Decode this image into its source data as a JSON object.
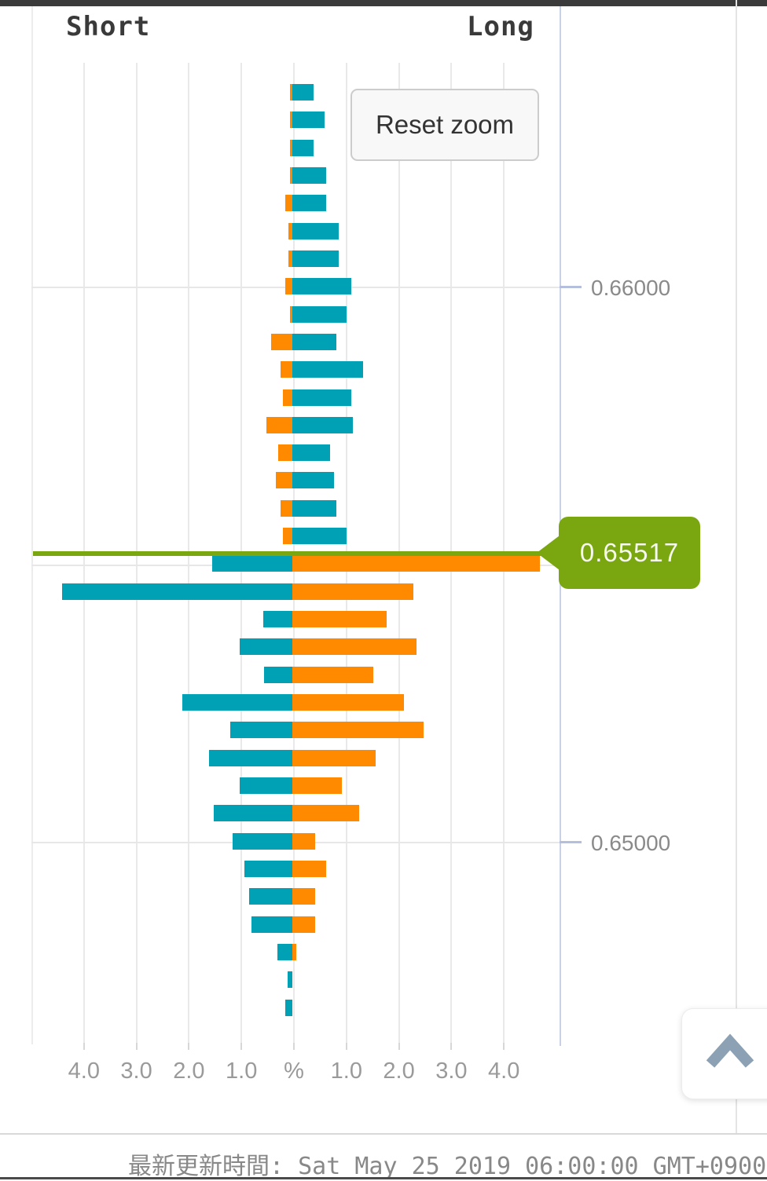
{
  "header": {
    "short_label": "Short",
    "long_label": "Long"
  },
  "toolbar": {
    "reset_zoom_label": "Reset zoom"
  },
  "y_axis": {
    "labels": [
      "0.66000",
      "0.65000"
    ]
  },
  "x_axis": {
    "labels": [
      "4.0",
      "3.0",
      "2.0",
      "1.0",
      "%",
      "1.0",
      "2.0",
      "3.0",
      "4.0"
    ]
  },
  "current_price": {
    "value": "0.65517"
  },
  "footer": {
    "updated_text": "最新更新時間: Sat May 25 2019 06:00:00 GMT+0900"
  },
  "colors": {
    "teal": "#00a1b5",
    "orange": "#ff8a00",
    "green": "#7aa70f",
    "top_bar": "#3b3b3b",
    "axis_label_gray": "#8a8a8a",
    "chevron_blue_gray": "#8ca2b4"
  },
  "chart_data": {
    "type": "bar",
    "orientation": "horizontal-bidirectional",
    "title": "",
    "xlabel": "%",
    "x_range_pct": [
      -4.5,
      4.5
    ],
    "x_tick_step_pct": 1.0,
    "grid": true,
    "current_price": 0.65517,
    "current_row_index": 17,
    "y_tick_prices": [
      0.66,
      0.655,
      0.65
    ],
    "y_tick_labeled": [
      0.66,
      0.65
    ],
    "series": [
      {
        "name": "Short",
        "values": [
          0.05,
          0.05,
          0.05,
          0.05,
          0.13,
          0.07,
          0.07,
          0.13,
          0.05,
          0.4,
          0.23,
          0.18,
          0.49,
          0.27,
          0.32,
          0.22,
          0.18,
          1.53,
          4.38,
          0.55,
          1.0,
          0.54,
          2.1,
          1.19,
          1.59,
          1.0,
          1.5,
          1.14,
          0.92,
          0.82,
          0.78,
          0.28,
          0.09,
          0.14
        ]
      },
      {
        "name": "Long",
        "values": [
          0.4,
          0.62,
          0.4,
          0.65,
          0.65,
          0.88,
          0.89,
          1.12,
          1.03,
          0.84,
          1.35,
          1.12,
          1.16,
          0.72,
          0.8,
          0.84,
          1.03,
          4.72,
          2.31,
          1.8,
          2.36,
          1.54,
          2.13,
          2.5,
          1.58,
          0.94,
          1.27,
          0.43,
          0.65,
          0.43,
          0.43,
          0.07,
          0.0,
          0.0
        ]
      }
    ],
    "color_rule": "rows above current price: left bar orange / right bar teal; rows at & below current price: left bar teal / right bar orange"
  }
}
